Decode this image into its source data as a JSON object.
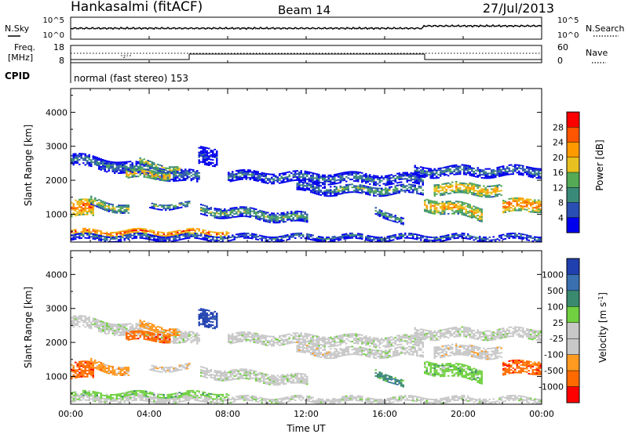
{
  "header": {
    "station": "Hankasalmi (fitACF)",
    "beam": "Beam 14",
    "date": "27/Jul/2013"
  },
  "noise_panel": {
    "left_label": "N.Sky",
    "right_label": "N.Search",
    "left_ticks": [
      "10^5",
      "10^0"
    ],
    "right_ticks": [
      "10^5",
      "10^0"
    ]
  },
  "freq_panel": {
    "left_label_1": "Freq.",
    "left_label_2": "[MHz]",
    "right_label": "Nave",
    "left_ticks": [
      "18",
      "8"
    ],
    "right_ticks": [
      "60",
      "0"
    ]
  },
  "cpid": {
    "label": "CPID",
    "text": "normal (fast stereo) 153"
  },
  "colors": {
    "power_scale": [
      "#0000ee",
      "#2a4fb4",
      "#3a8a7a",
      "#55aa55",
      "#e8c020",
      "#ff9a00",
      "#ff5500",
      "#ff0000"
    ],
    "velocity_scale": [
      "#2040b0",
      "#3a70b0",
      "#3a8a70",
      "#70d040",
      "#c8c8c8",
      "#c8c8c8",
      "#ff9a20",
      "#ff6a00",
      "#ff0000"
    ]
  },
  "chart_data": [
    {
      "type": "heatmap",
      "name": "Power",
      "xlabel": "",
      "ylabel": "Slant Range [km]",
      "x_range": [
        "00:00",
        "24:00"
      ],
      "ylim": [
        180,
        4700
      ],
      "y_ticks": [
        1000,
        2000,
        3000,
        4000
      ],
      "y_tick_labels": [
        "1000",
        "2000",
        "3000",
        "4000"
      ],
      "colorbar": {
        "label": "Power [dB]",
        "tick_labels": [
          "4",
          "8",
          "12",
          "16",
          "20",
          "24",
          "28"
        ],
        "range": [
          0,
          32
        ]
      }
    },
    {
      "type": "heatmap",
      "name": "Velocity",
      "xlabel": "Time UT",
      "ylabel": "Slant Range [km]",
      "x_range": [
        "00:00",
        "24:00"
      ],
      "x_tick_labels": [
        "00:00",
        "04:00",
        "08:00",
        "12:00",
        "16:00",
        "20:00",
        "00:00"
      ],
      "ylim": [
        180,
        4700
      ],
      "y_ticks": [
        1000,
        2000,
        3000,
        4000
      ],
      "y_tick_labels": [
        "1000",
        "2000",
        "3000",
        "4000"
      ],
      "colorbar": {
        "label": "Velocity [m s^-1]",
        "tick_labels": [
          "1000",
          "500",
          "100",
          "25",
          "-25",
          "-100",
          "-500",
          "-1000"
        ]
      }
    }
  ],
  "xaxis": {
    "label": "Time UT",
    "tick_labels": [
      "00:00",
      "04:00",
      "08:00",
      "12:00",
      "16:00",
      "20:00",
      "00:00"
    ]
  }
}
